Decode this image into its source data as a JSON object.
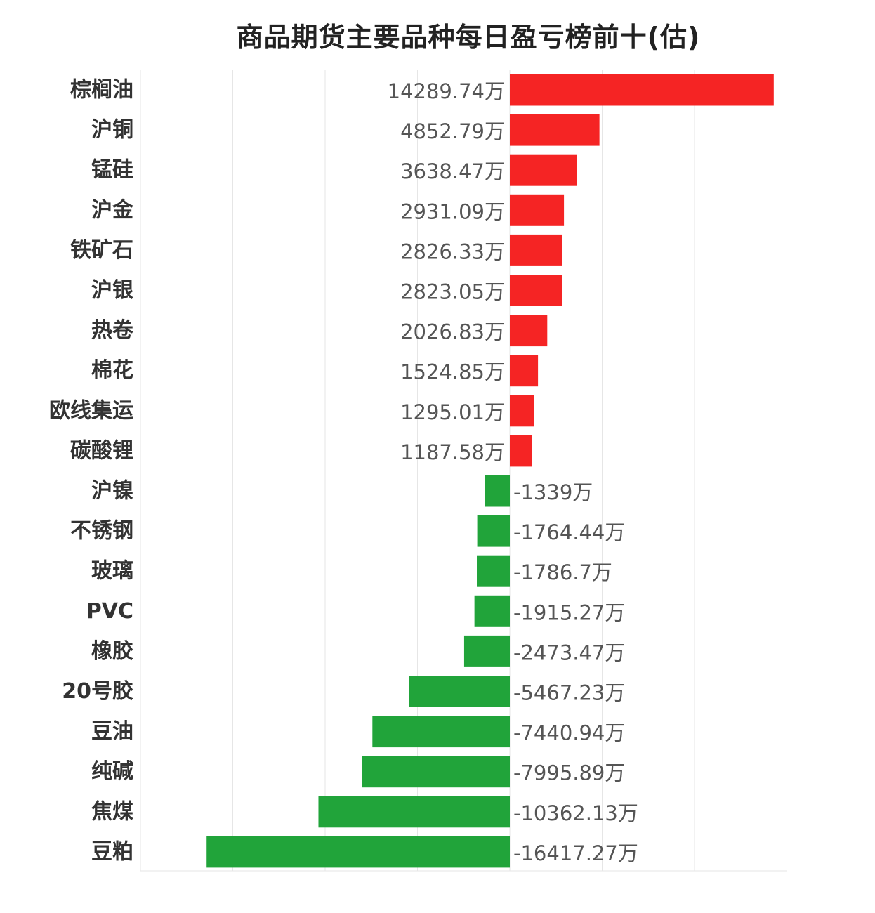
{
  "chart_data": {
    "type": "bar",
    "orientation": "horizontal",
    "title": "商品期货主要品种每日盈亏榜前十(估)",
    "unit": "万",
    "categories": [
      "棕榈油",
      "沪铜",
      "锰硅",
      "沪金",
      "铁矿石",
      "沪银",
      "热卷",
      "棉花",
      "欧线集运",
      "碳酸锂",
      "沪镍",
      "不锈钢",
      "玻璃",
      "PVC",
      "橡胶",
      "20号胶",
      "豆油",
      "纯碱",
      "焦煤",
      "豆粕"
    ],
    "values": [
      14289.74,
      4852.79,
      3638.47,
      2931.09,
      2826.33,
      2823.05,
      2026.83,
      1524.85,
      1295.01,
      1187.58,
      -1339,
      -1764.44,
      -1786.7,
      -1915.27,
      -2473.47,
      -5467.23,
      -7440.94,
      -7995.89,
      -10362.13,
      -16417.27
    ],
    "value_labels": [
      "14289.74万",
      "4852.79万",
      "3638.47万",
      "2931.09万",
      "2826.33万",
      "2823.05万",
      "2026.83万",
      "1524.85万",
      "1295.01万",
      "1187.58万",
      "-1339万",
      "-1764.44万",
      "-1786.7万",
      "-1915.27万",
      "-2473.47万",
      "-5467.23万",
      "-7440.94万",
      "-7995.89万",
      "-10362.13万",
      "-16417.27万"
    ],
    "xlim": [
      -20000,
      15000
    ],
    "grid": true,
    "colors": {
      "positive": "#f52424",
      "negative": "#21a43a"
    }
  }
}
